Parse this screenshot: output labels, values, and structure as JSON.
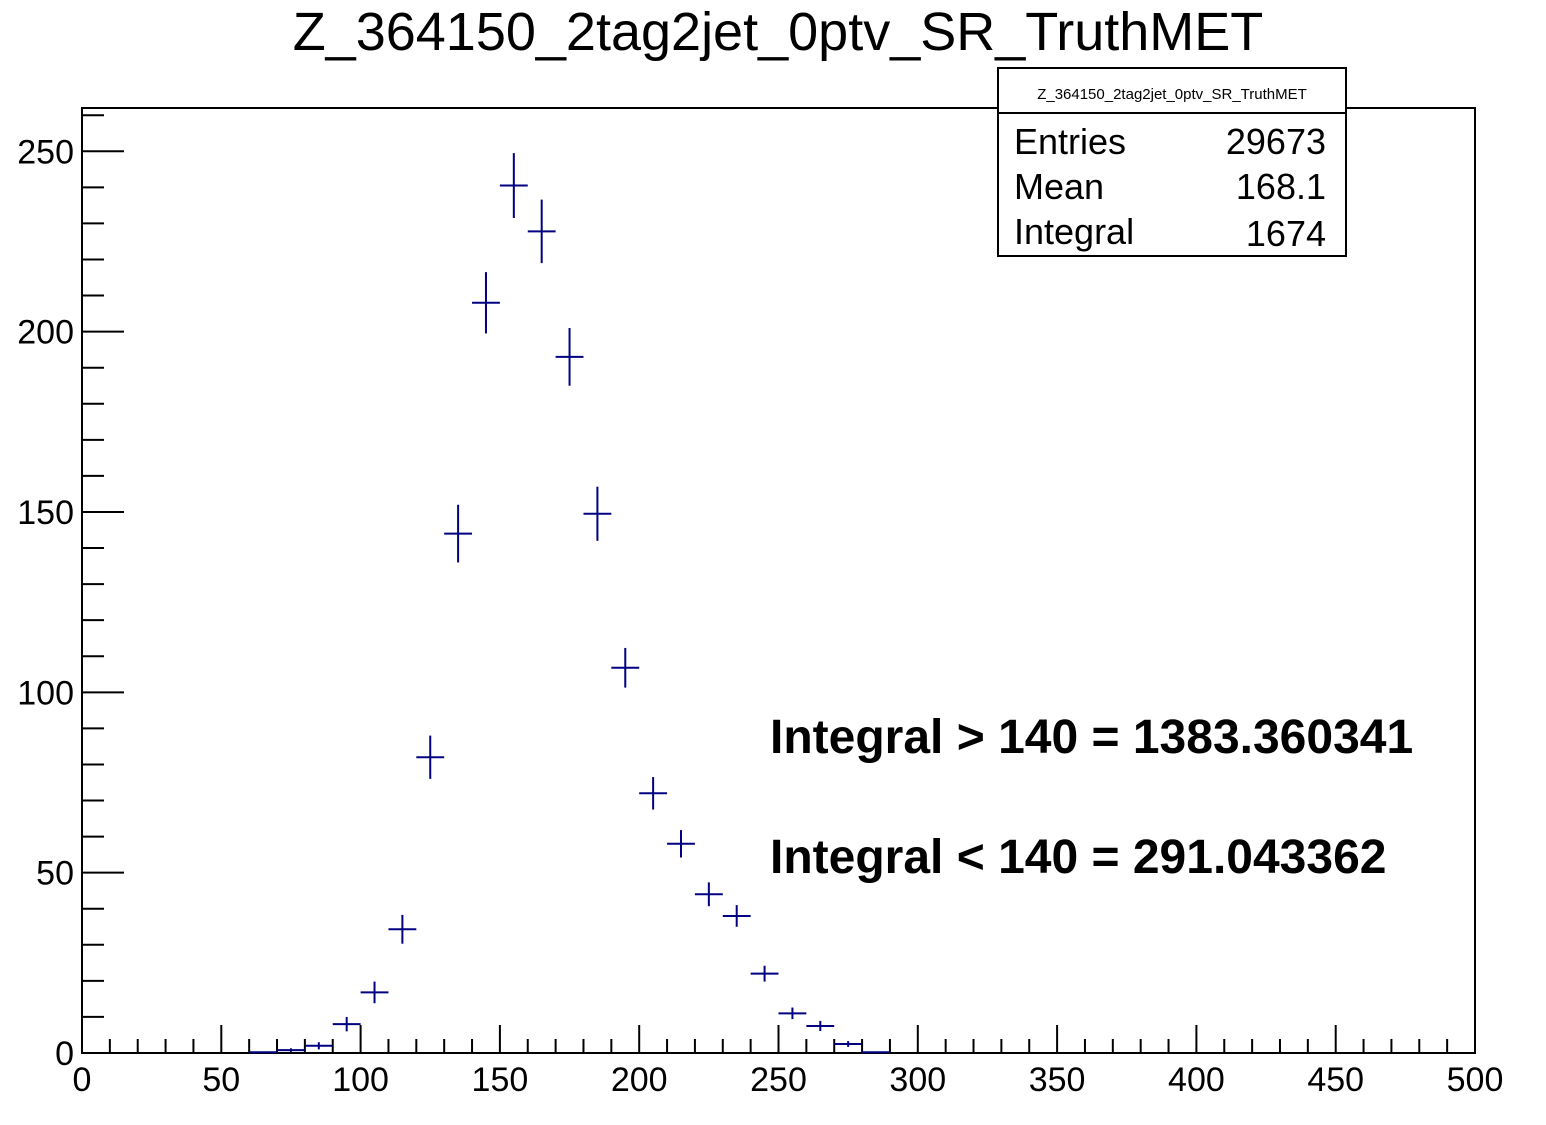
{
  "chart_data": {
    "type": "scatter",
    "title": "Z_364150_2tag2jet_0ptv_SR_TruthMET",
    "xlabel": "",
    "ylabel": "",
    "xlim": [
      0,
      500
    ],
    "ylim": [
      0,
      262
    ],
    "x_ticks": [
      0,
      50,
      100,
      150,
      200,
      250,
      300,
      350,
      400,
      450,
      500
    ],
    "y_ticks": [
      0,
      50,
      100,
      150,
      200,
      250
    ],
    "grid": false,
    "marker_color": "#000080",
    "bin_width": 10,
    "series": [
      {
        "x": [
          65,
          75,
          85,
          95,
          105,
          115,
          125,
          135,
          145,
          155,
          165,
          175,
          185,
          195,
          205,
          215,
          225,
          235,
          245,
          255,
          265,
          275,
          285
        ],
        "values": [
          0.2,
          0.8,
          2.0,
          8.0,
          16.8,
          34.3,
          82.0,
          144.0,
          208.0,
          240.5,
          227.8,
          193.0,
          149.5,
          106.8,
          72.0,
          58.0,
          44.0,
          38.0,
          22.0,
          11.0,
          7.5,
          2.5,
          0.2
        ],
        "errors": [
          0.2,
          0.5,
          1.0,
          2.0,
          3.0,
          4.0,
          6.0,
          8.0,
          8.5,
          9.0,
          8.8,
          8.0,
          7.5,
          5.5,
          4.5,
          3.8,
          3.3,
          3.0,
          2.2,
          1.6,
          1.4,
          0.8,
          0.2
        ]
      }
    ],
    "stats_box": {
      "name": "Z_364150_2tag2jet_0ptv_SR_TruthMET",
      "rows": [
        {
          "label": "Entries",
          "value": "29673"
        },
        {
          "label": "Mean",
          "value": "168.1"
        },
        {
          "label": "Integral",
          "value": "1674"
        }
      ],
      "placement": "top-right"
    },
    "annotations": [
      "Integral > 140 = 1383.360341",
      "Integral < 140 = 291.043362"
    ]
  }
}
